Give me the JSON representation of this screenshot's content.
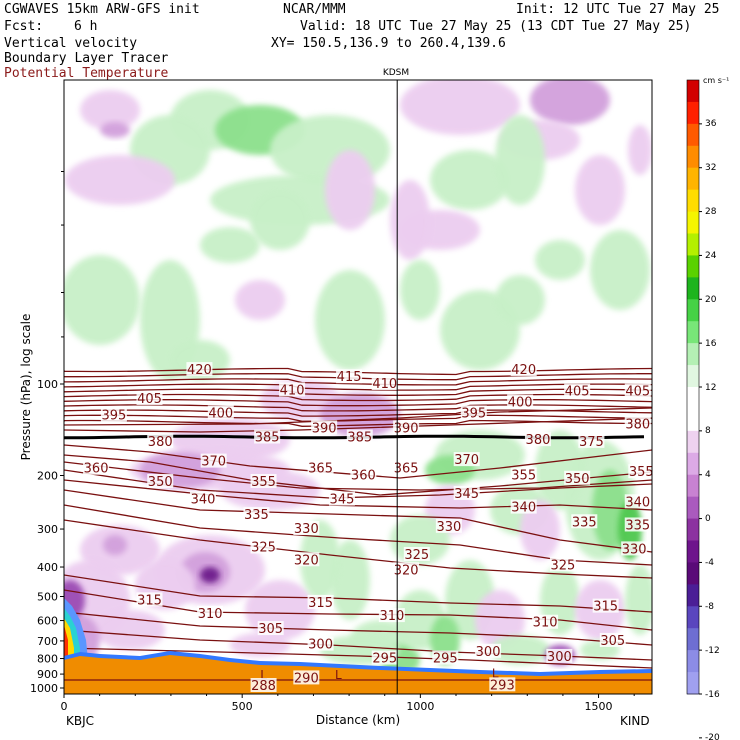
{
  "header": {
    "model": "CGWAVES 15km ARW-GFS init",
    "org": "NCAR/MMM",
    "init": "Init: 12 UTC Tue 27 May 25",
    "fcst_label": "Fcst:",
    "fcst_value": "6 h",
    "valid": "Valid: 18 UTC Tue 27 May 25 (13 CDT Tue 27 May 25)",
    "field1": "Vertical velocity",
    "field2": "Boundary Layer Tracer",
    "field3": "Potential Temperature",
    "xy": "XY= 150.5,136.9 to 260.4,139.6",
    "marker_label": "KDSM",
    "left_station": "KBJC",
    "right_station": "KIND"
  },
  "colors": {
    "theta_contour": "#7a1010",
    "tropopause": "#000000",
    "terrain": "#f08c00"
  },
  "chart_data": {
    "type": "heatmap",
    "title": "Vertical velocity",
    "xlabel": "Distance (km)",
    "ylabel": "Pressure (hPa), log scale",
    "x_ticks": [
      0,
      500,
      1000,
      1500
    ],
    "xlim": [
      0,
      1650
    ],
    "y_ticks": [
      100,
      200,
      300,
      400,
      500,
      600,
      700,
      800,
      900,
      1000
    ],
    "y_scale": "log",
    "marker_x": 935,
    "colorbar": {
      "unit": "cm s⁻¹",
      "ticks": [
        36,
        32,
        28,
        24,
        20,
        16,
        12,
        8,
        4,
        0,
        -4,
        -8,
        -12,
        -16,
        -20
      ],
      "colors": [
        "#d20000",
        "#ff2000",
        "#ff5a00",
        "#ff8c00",
        "#ffb400",
        "#ffdc00",
        "#f5f500",
        "#b4f000",
        "#5ad200",
        "#1eb41e",
        "#46d246",
        "#78e678",
        "#b4f0b4",
        "#e1f7e1",
        "#ffffff",
        "#ffffff",
        "#eed2f0",
        "#dcaae6",
        "#c882d2",
        "#aa5abe",
        "#8c32a0",
        "#6e148c",
        "#5a0a78",
        "#4b1e96",
        "#5a46be",
        "#6e6ed2",
        "#8c8ce6",
        "#a0a0f0"
      ]
    },
    "theta_labels": [
      {
        "value": 420,
        "x": 380,
        "p": 90
      },
      {
        "value": 415,
        "x": 800,
        "p": 95
      },
      {
        "value": 410,
        "x": 640,
        "p": 105
      },
      {
        "value": 410,
        "x": 900,
        "p": 100
      },
      {
        "value": 420,
        "x": 1290,
        "p": 90
      },
      {
        "value": 405,
        "x": 240,
        "p": 112
      },
      {
        "value": 400,
        "x": 440,
        "p": 125
      },
      {
        "value": 390,
        "x": 730,
        "p": 140
      },
      {
        "value": 385,
        "x": 570,
        "p": 150
      },
      {
        "value": 385,
        "x": 830,
        "p": 150
      },
      {
        "value": 390,
        "x": 960,
        "p": 140
      },
      {
        "value": 395,
        "x": 140,
        "p": 127
      },
      {
        "value": 395,
        "x": 1150,
        "p": 125
      },
      {
        "value": 400,
        "x": 1280,
        "p": 115
      },
      {
        "value": 405,
        "x": 1440,
        "p": 106
      },
      {
        "value": 405,
        "x": 1610,
        "p": 106
      },
      {
        "value": 380,
        "x": 270,
        "p": 155
      },
      {
        "value": 380,
        "x": 1610,
        "p": 136
      },
      {
        "value": 380,
        "x": 1330,
        "p": 153
      },
      {
        "value": 375,
        "x": 1480,
        "p": 155
      },
      {
        "value": 370,
        "x": 420,
        "p": 180
      },
      {
        "value": 365,
        "x": 720,
        "p": 190
      },
      {
        "value": 365,
        "x": 960,
        "p": 190
      },
      {
        "value": 370,
        "x": 1130,
        "p": 178
      },
      {
        "value": 360,
        "x": 90,
        "p": 190
      },
      {
        "value": 360,
        "x": 840,
        "p": 200
      },
      {
        "value": 355,
        "x": 560,
        "p": 210
      },
      {
        "value": 355,
        "x": 1290,
        "p": 200
      },
      {
        "value": 355,
        "x": 1620,
        "p": 195
      },
      {
        "value": 350,
        "x": 270,
        "p": 210
      },
      {
        "value": 350,
        "x": 1440,
        "p": 205
      },
      {
        "value": 345,
        "x": 780,
        "p": 240
      },
      {
        "value": 345,
        "x": 1130,
        "p": 230
      },
      {
        "value": 340,
        "x": 390,
        "p": 240
      },
      {
        "value": 340,
        "x": 1290,
        "p": 255
      },
      {
        "value": 340,
        "x": 1610,
        "p": 245
      },
      {
        "value": 335,
        "x": 540,
        "p": 270
      },
      {
        "value": 335,
        "x": 1460,
        "p": 285
      },
      {
        "value": 335,
        "x": 1610,
        "p": 292
      },
      {
        "value": 330,
        "x": 680,
        "p": 300
      },
      {
        "value": 330,
        "x": 1080,
        "p": 295
      },
      {
        "value": 330,
        "x": 1600,
        "p": 350
      },
      {
        "value": 325,
        "x": 560,
        "p": 345
      },
      {
        "value": 325,
        "x": 990,
        "p": 365
      },
      {
        "value": 325,
        "x": 1400,
        "p": 395
      },
      {
        "value": 320,
        "x": 680,
        "p": 380
      },
      {
        "value": 320,
        "x": 960,
        "p": 410
      },
      {
        "value": 315,
        "x": 240,
        "p": 515
      },
      {
        "value": 315,
        "x": 720,
        "p": 525
      },
      {
        "value": 315,
        "x": 1520,
        "p": 540
      },
      {
        "value": 310,
        "x": 410,
        "p": 570
      },
      {
        "value": 310,
        "x": 920,
        "p": 580
      },
      {
        "value": 310,
        "x": 1350,
        "p": 610
      },
      {
        "value": 305,
        "x": 580,
        "p": 640
      },
      {
        "value": 305,
        "x": 1540,
        "p": 700
      },
      {
        "value": 300,
        "x": 720,
        "p": 720
      },
      {
        "value": 300,
        "x": 1190,
        "p": 760
      },
      {
        "value": 300,
        "x": 1390,
        "p": 790
      },
      {
        "value": 295,
        "x": 900,
        "p": 800
      },
      {
        "value": 295,
        "x": 1070,
        "p": 800
      },
      {
        "value": 290,
        "x": 680,
        "p": 930
      },
      {
        "value": 288,
        "x": 560,
        "p": 985
      },
      {
        "value": 293,
        "x": 1230,
        "p": 980
      }
    ],
    "terrain_L": [
      {
        "x": 560,
        "p": 900
      },
      {
        "x": 770,
        "p": 900
      },
      {
        "x": 1210,
        "p": 890
      }
    ]
  }
}
